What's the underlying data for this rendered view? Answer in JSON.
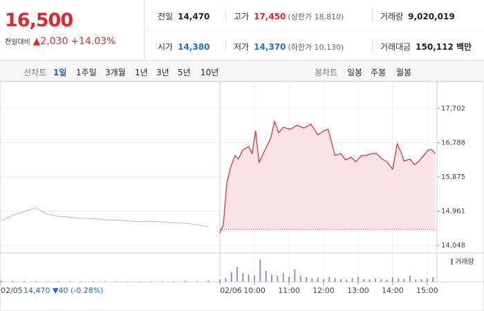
{
  "summary": {
    "price": "16,500",
    "change_label": "전일대비",
    "change": "▲2,030",
    "change_rate": "+14.03%"
  },
  "quotes": [
    [
      {
        "label": "전일",
        "value": "14,470"
      },
      {
        "label": "고가",
        "value": "17,450",
        "extra": "(상한가 18,810)"
      },
      {
        "label": "거래량",
        "value": "9,020,019"
      }
    ],
    [
      {
        "label": "시가",
        "value": "14,380"
      },
      {
        "label": "저가",
        "value": "14,370",
        "extra": "(하한가 10,130)"
      },
      {
        "label": "거래대금",
        "value": "150,112 백만"
      }
    ]
  ],
  "tabs": {
    "line_label": "선차트",
    "periods": [
      "1일",
      "1주일",
      "3개월",
      "1년",
      "3년",
      "5년",
      "10년"
    ],
    "active": 0,
    "candle_label": "봉차트",
    "candles": [
      "일봉",
      "주봉",
      "월봉"
    ]
  },
  "chart_data": {
    "type": "line",
    "xlim": [
      -382,
      377
    ],
    "xticks": [
      {
        "value": -382,
        "label": "02/05"
      },
      {
        "value": 0,
        "label": "02/06"
      },
      {
        "value": 60,
        "label": "10:00"
      },
      {
        "value": 120,
        "label": "11:00"
      },
      {
        "value": 180,
        "label": "12:00"
      },
      {
        "value": 240,
        "label": "13:00"
      },
      {
        "value": 300,
        "label": "14:00"
      },
      {
        "value": 360,
        "label": "15:00"
      }
    ],
    "ylim": [
      13863,
      18292
    ],
    "yticks": [
      {
        "value": 17702,
        "label": "17,702"
      },
      {
        "value": 16788,
        "label": "16,788"
      },
      {
        "value": 15875,
        "label": "15,875"
      },
      {
        "value": 14961,
        "label": "14,961"
      },
      {
        "value": 14048,
        "label": "14,048"
      }
    ],
    "grid": true,
    "baseline": 14470,
    "annotation": "14,470 ▼40 (-0.28%)",
    "series": [
      {
        "color": "#b9b9b9",
        "x": [
          -380,
          -360,
          -340,
          -320,
          -300,
          -280,
          -260,
          -240,
          -220,
          -200,
          -180,
          -160,
          -140,
          -120,
          -100,
          -80,
          -60,
          -40,
          -20
        ],
        "values": [
          14700,
          14850,
          14950,
          15050,
          14880,
          14820,
          14800,
          14770,
          14760,
          14730,
          14720,
          14700,
          14680,
          14690,
          14670,
          14650,
          14640,
          14600,
          14540
        ]
      },
      {
        "color": "#e3262b",
        "fill": "#fde4e6",
        "x": [
          0,
          6,
          12,
          18,
          26,
          32,
          40,
          50,
          56,
          62,
          68,
          80,
          88,
          95,
          102,
          110,
          122,
          134,
          146,
          158,
          170,
          180,
          188,
          200,
          210,
          218,
          228,
          236,
          246,
          254,
          264,
          272,
          282,
          290,
          300,
          308,
          314,
          320,
          330,
          338,
          346,
          354,
          362,
          368,
          374
        ],
        "values": [
          14380,
          14600,
          15708,
          16100,
          16447,
          16350,
          16600,
          16687,
          16500,
          17107,
          16262,
          16650,
          16900,
          17355,
          17050,
          17200,
          17150,
          17250,
          17180,
          17280,
          17000,
          17100,
          17150,
          16447,
          16500,
          16330,
          16400,
          16280,
          16450,
          16447,
          16500,
          16500,
          16350,
          16280,
          16078,
          16760,
          16550,
          16300,
          16350,
          16200,
          16300,
          16450,
          16600,
          16600,
          16500
        ]
      }
    ],
    "volume": {
      "label": "거래량",
      "color": "#9d8bc6",
      "ylim": [
        0,
        100
      ],
      "x": [
        -380,
        -360,
        -340,
        -320,
        -300,
        -280,
        -260,
        -240,
        -220,
        -200,
        -180,
        -160,
        -140,
        -120,
        -100,
        -80,
        -60,
        -40,
        -20,
        0,
        10,
        20,
        30,
        40,
        50,
        60,
        70,
        80,
        90,
        100,
        110,
        120,
        130,
        140,
        150,
        160,
        170,
        180,
        190,
        200,
        210,
        220,
        230,
        240,
        250,
        260,
        270,
        280,
        290,
        300,
        310,
        320,
        330,
        340,
        350,
        360,
        370
      ],
      "values": [
        5,
        4,
        3,
        3,
        2,
        3,
        2,
        2,
        3,
        2,
        2,
        2,
        3,
        2,
        2,
        3,
        4,
        3,
        6,
        10,
        15,
        40,
        60,
        35,
        30,
        25,
        90,
        45,
        30,
        25,
        35,
        20,
        50,
        25,
        20,
        15,
        18,
        12,
        20,
        15,
        12,
        10,
        15,
        20,
        12,
        10,
        15,
        12,
        10,
        18,
        15,
        12,
        25,
        10,
        12,
        15,
        20
      ]
    }
  }
}
